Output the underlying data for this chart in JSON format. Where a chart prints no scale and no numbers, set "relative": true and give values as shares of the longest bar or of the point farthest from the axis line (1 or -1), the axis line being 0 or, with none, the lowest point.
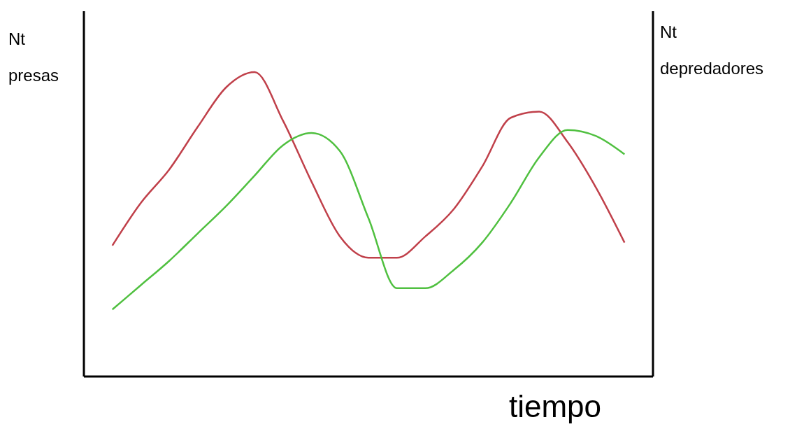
{
  "chart_data": {
    "type": "line",
    "relative": true,
    "xlabel": "tiempo",
    "ylabel": "Nt presas",
    "y2label": "Nt depredadores",
    "categories": [
      null,
      null,
      null,
      null,
      null,
      null,
      null,
      null,
      null,
      null,
      null,
      null,
      null,
      null,
      null,
      null,
      null,
      null,
      null,
      null,
      null
    ],
    "series": [
      {
        "color": "#c0404a",
        "values": [
          null,
          0.43,
          0.57,
          0.68,
          0.82,
          0.95,
          1,
          0.84,
          0.64,
          0.46,
          0.39,
          0.39,
          0.46,
          0.55,
          0.69,
          0.85,
          0.87,
          0.77,
          0.62,
          0.44,
          null
        ]
      },
      {
        "color": "#50c040",
        "values": [
          null,
          0.22,
          0.3,
          0.38,
          0.47,
          0.56,
          0.66,
          0.76,
          0.8,
          0.74,
          0.52,
          0.29,
          0.29,
          0.35,
          0.44,
          0.57,
          0.72,
          0.81,
          0.79,
          0.73,
          null
        ]
      }
    ]
  }
}
